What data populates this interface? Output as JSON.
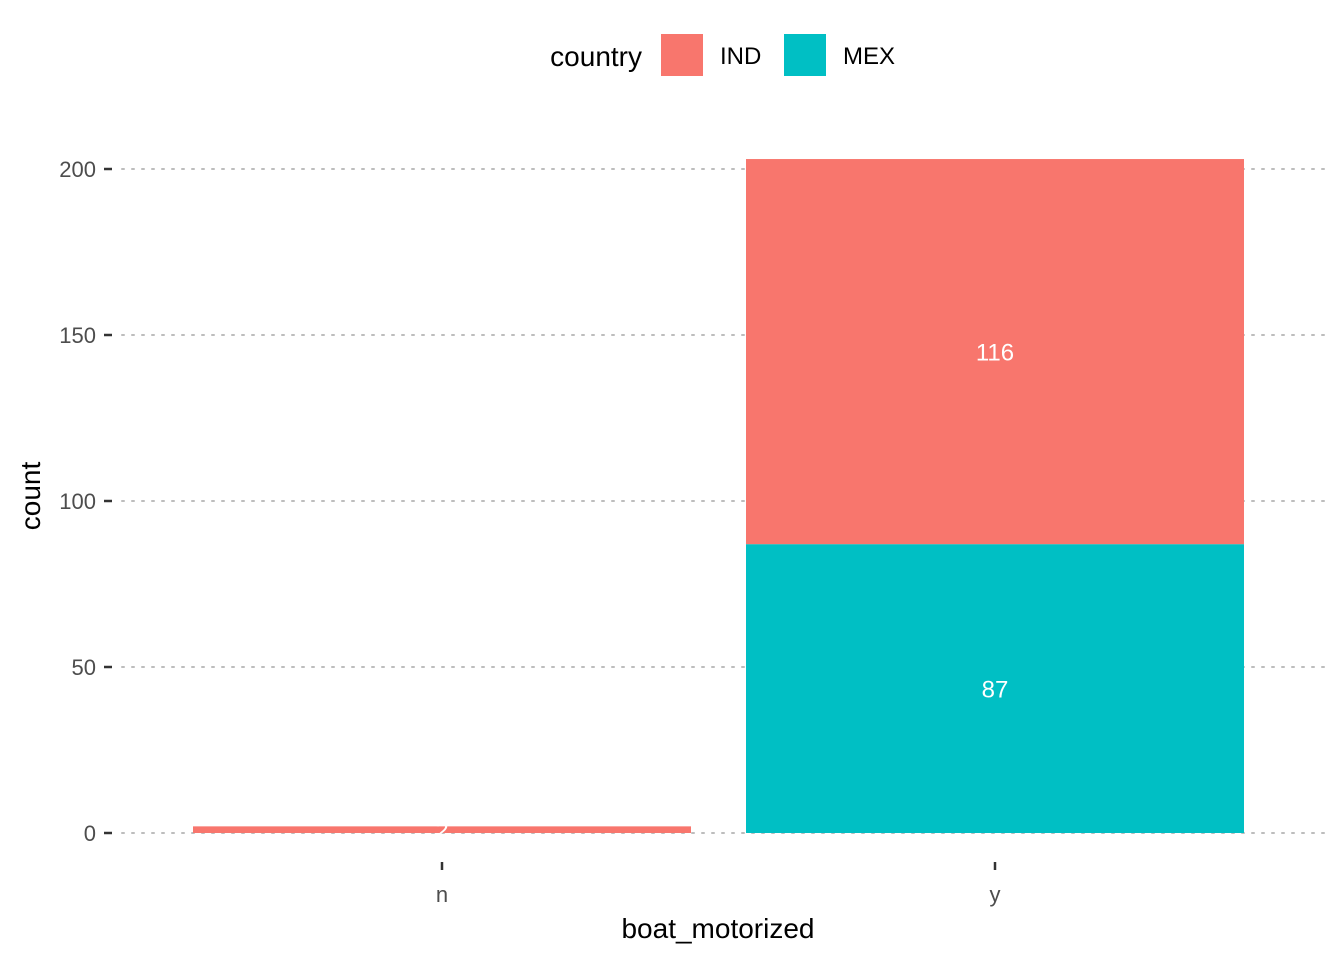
{
  "chart_data": {
    "type": "bar",
    "stacked": true,
    "xlabel": "boat_motorized",
    "ylabel": "count",
    "categories": [
      "n",
      "y"
    ],
    "ylim": [
      0,
      203
    ],
    "yticks": [
      0,
      50,
      100,
      150,
      200
    ],
    "legend": {
      "title": "country",
      "position": "top"
    },
    "series": [
      {
        "name": "IND",
        "color": "#F8766D",
        "values": [
          2,
          116
        ],
        "labels": [
          "2",
          "116"
        ]
      },
      {
        "name": "MEX",
        "color": "#00BFC4",
        "values": [
          0,
          87
        ],
        "labels": [
          "",
          "87"
        ]
      }
    ],
    "grid": "horizontal-dotted"
  }
}
